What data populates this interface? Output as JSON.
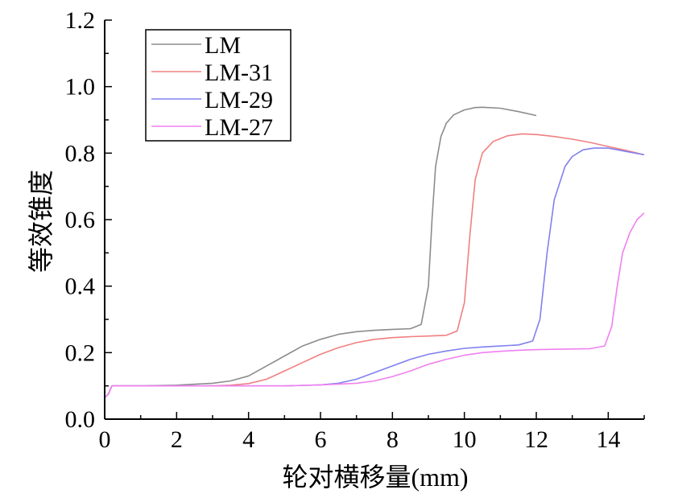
{
  "chart_data": {
    "type": "line",
    "xlabel": "轮对横移量(mm)",
    "ylabel": "等效锥度",
    "xlim": [
      0,
      15
    ],
    "ylim": [
      0,
      1.2
    ],
    "x_ticks": [
      "0",
      "2",
      "4",
      "6",
      "8",
      "10",
      "12",
      "14"
    ],
    "y_ticks": [
      "0.0",
      "0.2",
      "0.4",
      "0.6",
      "0.8",
      "1.0",
      "1.2"
    ],
    "legend_position": "top-left",
    "grid": false,
    "series": [
      {
        "name": "LM",
        "color": "#8c8c8c",
        "points": [
          [
            0.0,
            0.065
          ],
          [
            0.1,
            0.075
          ],
          [
            0.2,
            0.1
          ],
          [
            0.5,
            0.1
          ],
          [
            1,
            0.1
          ],
          [
            2,
            0.102
          ],
          [
            2.5,
            0.105
          ],
          [
            3,
            0.108
          ],
          [
            3.5,
            0.115
          ],
          [
            4,
            0.13
          ],
          [
            4.5,
            0.16
          ],
          [
            5,
            0.19
          ],
          [
            5.5,
            0.22
          ],
          [
            6,
            0.24
          ],
          [
            6.5,
            0.255
          ],
          [
            7,
            0.263
          ],
          [
            7.5,
            0.267
          ],
          [
            8,
            0.27
          ],
          [
            8.5,
            0.272
          ],
          [
            8.8,
            0.285
          ],
          [
            9.0,
            0.4
          ],
          [
            9.1,
            0.6
          ],
          [
            9.2,
            0.76
          ],
          [
            9.35,
            0.85
          ],
          [
            9.5,
            0.89
          ],
          [
            9.7,
            0.915
          ],
          [
            10.0,
            0.93
          ],
          [
            10.3,
            0.937
          ],
          [
            10.5,
            0.938
          ],
          [
            11.0,
            0.935
          ],
          [
            11.5,
            0.925
          ],
          [
            12.0,
            0.913
          ]
        ]
      },
      {
        "name": "LM-31",
        "color": "#f08080",
        "points": [
          [
            0.0,
            0.065
          ],
          [
            0.1,
            0.075
          ],
          [
            0.2,
            0.1
          ],
          [
            0.5,
            0.1
          ],
          [
            1,
            0.1
          ],
          [
            2,
            0.1
          ],
          [
            3,
            0.1
          ],
          [
            3.5,
            0.102
          ],
          [
            4,
            0.107
          ],
          [
            4.5,
            0.12
          ],
          [
            5,
            0.145
          ],
          [
            5.5,
            0.17
          ],
          [
            6,
            0.195
          ],
          [
            6.5,
            0.215
          ],
          [
            7,
            0.23
          ],
          [
            7.5,
            0.24
          ],
          [
            8,
            0.245
          ],
          [
            8.5,
            0.248
          ],
          [
            9,
            0.25
          ],
          [
            9.5,
            0.252
          ],
          [
            9.8,
            0.265
          ],
          [
            10.0,
            0.35
          ],
          [
            10.15,
            0.55
          ],
          [
            10.3,
            0.72
          ],
          [
            10.5,
            0.8
          ],
          [
            10.8,
            0.835
          ],
          [
            11.2,
            0.852
          ],
          [
            11.6,
            0.858
          ],
          [
            12.0,
            0.856
          ],
          [
            12.5,
            0.85
          ],
          [
            13,
            0.842
          ],
          [
            13.5,
            0.832
          ],
          [
            14,
            0.82
          ],
          [
            14.5,
            0.808
          ],
          [
            15,
            0.795
          ]
        ]
      },
      {
        "name": "LM-29",
        "color": "#8080f0",
        "points": [
          [
            0.0,
            0.065
          ],
          [
            0.1,
            0.075
          ],
          [
            0.2,
            0.1
          ],
          [
            0.5,
            0.1
          ],
          [
            1,
            0.1
          ],
          [
            2,
            0.1
          ],
          [
            3,
            0.1
          ],
          [
            4,
            0.1
          ],
          [
            5,
            0.1
          ],
          [
            6,
            0.103
          ],
          [
            6.5,
            0.108
          ],
          [
            7,
            0.12
          ],
          [
            7.5,
            0.14
          ],
          [
            8,
            0.16
          ],
          [
            8.5,
            0.18
          ],
          [
            9,
            0.195
          ],
          [
            9.5,
            0.205
          ],
          [
            10,
            0.213
          ],
          [
            10.5,
            0.217
          ],
          [
            11,
            0.22
          ],
          [
            11.5,
            0.223
          ],
          [
            11.9,
            0.235
          ],
          [
            12.1,
            0.3
          ],
          [
            12.3,
            0.5
          ],
          [
            12.5,
            0.66
          ],
          [
            12.8,
            0.76
          ],
          [
            13.0,
            0.79
          ],
          [
            13.3,
            0.81
          ],
          [
            13.6,
            0.815
          ],
          [
            14.0,
            0.815
          ],
          [
            14.5,
            0.805
          ],
          [
            15,
            0.795
          ]
        ]
      },
      {
        "name": "LM-27",
        "color": "#f080f0",
        "points": [
          [
            0.0,
            0.065
          ],
          [
            0.1,
            0.075
          ],
          [
            0.2,
            0.1
          ],
          [
            0.5,
            0.1
          ],
          [
            1,
            0.1
          ],
          [
            2,
            0.1
          ],
          [
            3,
            0.1
          ],
          [
            4,
            0.1
          ],
          [
            5,
            0.1
          ],
          [
            6,
            0.103
          ],
          [
            7,
            0.108
          ],
          [
            7.5,
            0.115
          ],
          [
            8,
            0.128
          ],
          [
            8.5,
            0.145
          ],
          [
            9,
            0.165
          ],
          [
            9.5,
            0.18
          ],
          [
            10,
            0.192
          ],
          [
            10.5,
            0.2
          ],
          [
            11,
            0.204
          ],
          [
            11.5,
            0.207
          ],
          [
            12,
            0.209
          ],
          [
            12.5,
            0.21
          ],
          [
            13,
            0.211
          ],
          [
            13.5,
            0.212
          ],
          [
            13.9,
            0.22
          ],
          [
            14.1,
            0.28
          ],
          [
            14.25,
            0.4
          ],
          [
            14.4,
            0.5
          ],
          [
            14.6,
            0.56
          ],
          [
            14.8,
            0.6
          ],
          [
            15,
            0.62
          ]
        ]
      }
    ]
  }
}
